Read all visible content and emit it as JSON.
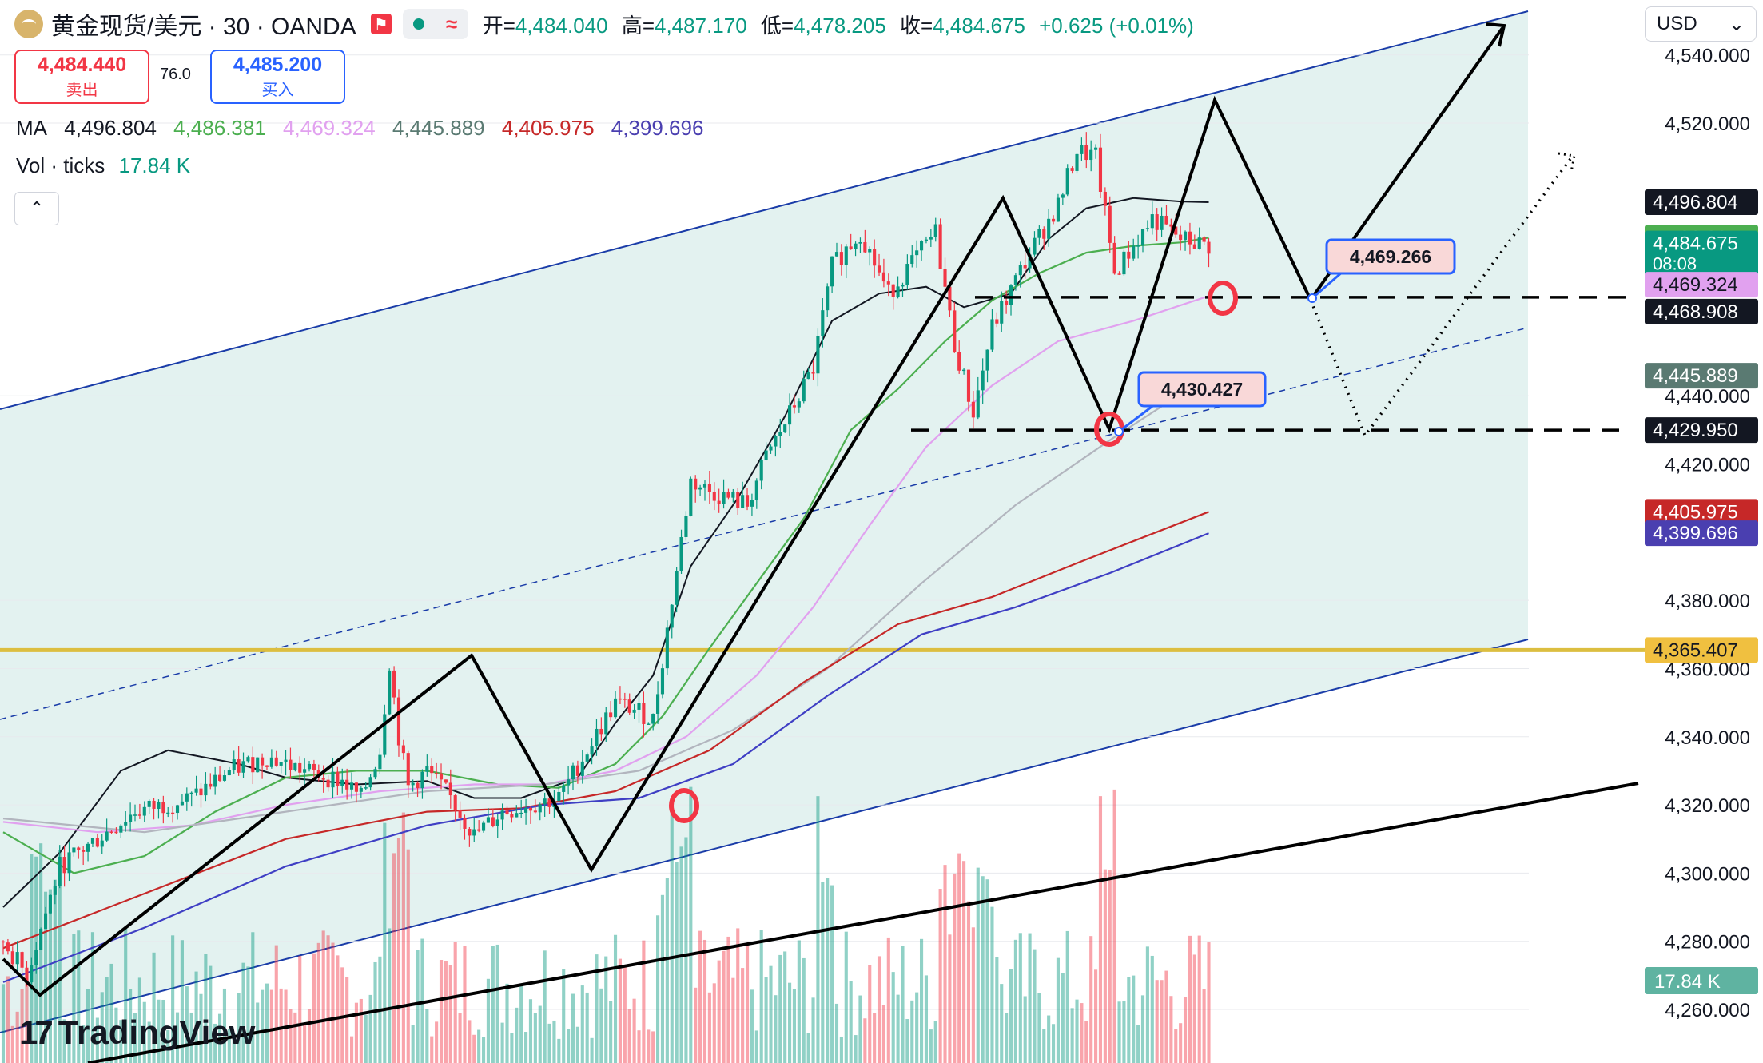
{
  "header": {
    "symbol": "黄金现货/美元 · 30 · OANDA",
    "open_label": "开=",
    "open": "4,484.040",
    "high_label": "高=",
    "high": "4,487.170",
    "low_label": "低=",
    "low": "4,478.205",
    "close_label": "收=",
    "close": "4,484.675",
    "change": "+0.625 (+0.01%)",
    "flag_icon": "flag-icon",
    "status_icon": "market-status-icon"
  },
  "trade": {
    "sell_price": "4,484.440",
    "sell_label": "卖出",
    "spread": "76.0",
    "buy_price": "4,485.200",
    "buy_label": "买入"
  },
  "ma_legend": {
    "label": "MA",
    "values": [
      "4,496.804",
      "4,486.381",
      "4,469.324",
      "4,445.889",
      "4,405.975",
      "4,399.696"
    ]
  },
  "vol_legend": {
    "label": "Vol · ticks",
    "value": "17.84 K"
  },
  "currency": "USD",
  "brand": "TradingView",
  "colors": {
    "up": "#089981",
    "down": "#f23645",
    "ma": [
      "#131722",
      "#4caf50",
      "#e1a1ef",
      "#b2b5be",
      "#c62828",
      "#3f3fc4"
    ],
    "channel_fill": "#dcefec",
    "channel_line": "#1a3ca8",
    "support": "#dcbe40"
  },
  "chart_data": {
    "type": "line",
    "title": "黄金现货/美元 · 30 · OANDA",
    "y_ticks": [
      4260,
      4280,
      4300,
      4320,
      4340,
      4360,
      4380,
      4420,
      4440,
      4520,
      4540
    ],
    "y_tick_labels": [
      "4,260.000",
      "4,280.000",
      "4,300.000",
      "4,320.000",
      "4,340.000",
      "4,360.000",
      "4,380.000",
      "4,420.000",
      "4,440.000",
      "4,520.000",
      "4,540.000"
    ],
    "ylim": [
      4246,
      4552
    ],
    "bars": 270,
    "series": [
      {
        "name": "price",
        "points": [
          [
            0,
            4280
          ],
          [
            5,
            4270
          ],
          [
            12,
            4302
          ],
          [
            20,
            4310
          ],
          [
            28,
            4318
          ],
          [
            40,
            4322
          ],
          [
            48,
            4330
          ],
          [
            56,
            4334
          ],
          [
            64,
            4330
          ],
          [
            72,
            4327
          ],
          [
            76,
            4322
          ],
          [
            80,
            4336
          ],
          [
            82,
            4362
          ],
          [
            84,
            4340
          ],
          [
            86,
            4325
          ],
          [
            90,
            4330
          ],
          [
            95,
            4322
          ],
          [
            100,
            4311
          ],
          [
            106,
            4318
          ],
          [
            112,
            4320
          ],
          [
            118,
            4322
          ],
          [
            124,
            4336
          ],
          [
            130,
            4350
          ],
          [
            134,
            4348
          ],
          [
            138,
            4345
          ],
          [
            142,
            4380
          ],
          [
            146,
            4415
          ],
          [
            150,
            4412
          ],
          [
            158,
            4408
          ],
          [
            162,
            4422
          ],
          [
            166,
            4432
          ],
          [
            172,
            4448
          ],
          [
            176,
            4478
          ],
          [
            182,
            4488
          ],
          [
            188,
            4470
          ],
          [
            198,
            4488
          ],
          [
            202,
            4455
          ],
          [
            206,
            4435
          ],
          [
            210,
            4460
          ],
          [
            218,
            4482
          ],
          [
            224,
            4496
          ],
          [
            228,
            4512
          ],
          [
            232,
            4510
          ],
          [
            236,
            4476
          ],
          [
            244,
            4492
          ],
          [
            250,
            4486
          ],
          [
            256,
            4484
          ]
        ]
      },
      {
        "name": "MA",
        "points": [
          [
            0,
            4290
          ],
          [
            12,
            4306
          ],
          [
            25,
            4330
          ],
          [
            35,
            4336
          ],
          [
            50,
            4332
          ],
          [
            60,
            4328
          ],
          [
            75,
            4326
          ],
          [
            90,
            4327
          ],
          [
            100,
            4322
          ],
          [
            110,
            4322
          ],
          [
            122,
            4328
          ],
          [
            130,
            4344
          ],
          [
            138,
            4358
          ],
          [
            146,
            4390
          ],
          [
            156,
            4410
          ],
          [
            166,
            4434
          ],
          [
            176,
            4462
          ],
          [
            186,
            4470
          ],
          [
            196,
            4472
          ],
          [
            204,
            4466
          ],
          [
            214,
            4470
          ],
          [
            222,
            4486
          ],
          [
            230,
            4495
          ],
          [
            240,
            4498
          ],
          [
            250,
            4497
          ],
          [
            256,
            4496.8
          ]
        ]
      },
      {
        "name": "MA",
        "points": [
          [
            0,
            4312
          ],
          [
            15,
            4300
          ],
          [
            30,
            4305
          ],
          [
            45,
            4318
          ],
          [
            60,
            4328
          ],
          [
            75,
            4330
          ],
          [
            90,
            4330
          ],
          [
            105,
            4326
          ],
          [
            118,
            4325
          ],
          [
            130,
            4332
          ],
          [
            140,
            4346
          ],
          [
            150,
            4366
          ],
          [
            160,
            4385
          ],
          [
            170,
            4404
          ],
          [
            180,
            4430
          ],
          [
            190,
            4442
          ],
          [
            200,
            4456
          ],
          [
            210,
            4468
          ],
          [
            220,
            4476
          ],
          [
            230,
            4482
          ],
          [
            240,
            4484
          ],
          [
            250,
            4485
          ],
          [
            256,
            4486.4
          ]
        ]
      },
      {
        "name": "MA",
        "points": [
          [
            0,
            4315
          ],
          [
            20,
            4312
          ],
          [
            40,
            4314
          ],
          [
            60,
            4320
          ],
          [
            80,
            4324
          ],
          [
            100,
            4326
          ],
          [
            115,
            4326
          ],
          [
            130,
            4330
          ],
          [
            145,
            4340
          ],
          [
            160,
            4358
          ],
          [
            172,
            4378
          ],
          [
            184,
            4402
          ],
          [
            196,
            4425
          ],
          [
            210,
            4443
          ],
          [
            224,
            4456
          ],
          [
            240,
            4462
          ],
          [
            256,
            4469.3
          ]
        ]
      },
      {
        "name": "MA",
        "points": [
          [
            0,
            4316
          ],
          [
            30,
            4312
          ],
          [
            60,
            4318
          ],
          [
            90,
            4324
          ],
          [
            115,
            4326
          ],
          [
            135,
            4330
          ],
          [
            155,
            4342
          ],
          [
            175,
            4360
          ],
          [
            195,
            4385
          ],
          [
            215,
            4408
          ],
          [
            235,
            4427
          ],
          [
            256,
            4445.9
          ]
        ]
      },
      {
        "name": "MA",
        "points": [
          [
            0,
            4278
          ],
          [
            30,
            4294
          ],
          [
            60,
            4310
          ],
          [
            90,
            4318
          ],
          [
            110,
            4319
          ],
          [
            130,
            4324
          ],
          [
            150,
            4336
          ],
          [
            170,
            4356
          ],
          [
            190,
            4373
          ],
          [
            210,
            4381
          ],
          [
            230,
            4392
          ],
          [
            256,
            4406
          ]
        ]
      },
      {
        "name": "MA",
        "points": [
          [
            0,
            4268
          ],
          [
            30,
            4284
          ],
          [
            60,
            4302
          ],
          [
            90,
            4314
          ],
          [
            115,
            4320
          ],
          [
            135,
            4322
          ],
          [
            155,
            4332
          ],
          [
            175,
            4352
          ],
          [
            195,
            4370
          ],
          [
            215,
            4378
          ],
          [
            235,
            4388
          ],
          [
            256,
            4399.7
          ]
        ]
      }
    ],
    "volume": {
      "name": "Vol · ticks",
      "last": 17.84,
      "unit": "K"
    },
    "annotations": [
      "4,469.266",
      "4,430.427"
    ],
    "price_levels": [
      {
        "value": 4496.804,
        "label": "4,496.804",
        "color": "#131722"
      },
      {
        "value": 4486.381,
        "label": "4,486.381",
        "color": "#4caf50"
      },
      {
        "value": 4484.675,
        "label": "4,484.675",
        "sub": "08:08",
        "color": "#089981"
      },
      {
        "value": 4469.324,
        "label": "4,469.324",
        "color": "#e1a1ef"
      },
      {
        "value": 4468.908,
        "label": "4,468.908",
        "color": "#131722"
      },
      {
        "value": 4445.889,
        "label": "4,445.889",
        "color": "#5a7a72"
      },
      {
        "value": 4429.95,
        "label": "4,429.950",
        "color": "#131722"
      },
      {
        "value": 4405.975,
        "label": "4,405.975",
        "color": "#c62828"
      },
      {
        "value": 4399.696,
        "label": "4,399.696",
        "color": "#4a3fb0"
      },
      {
        "value": 4365.407,
        "label": "4,365.407",
        "color": "#f0c040"
      }
    ],
    "volume_badge": "17.84 K"
  }
}
